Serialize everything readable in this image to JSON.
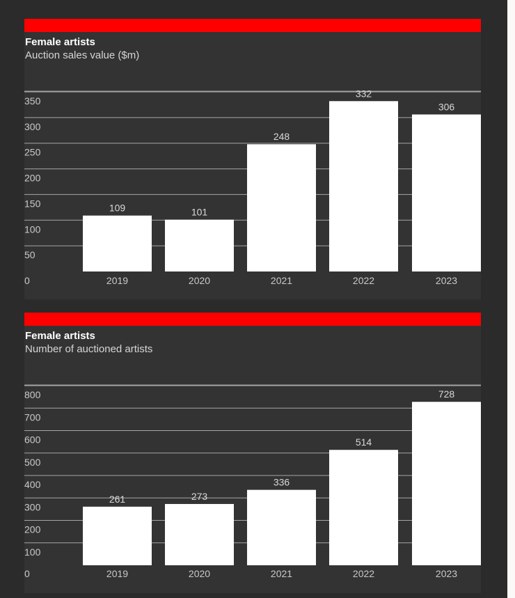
{
  "colors": {
    "accent": "#ff0000",
    "panel_background": "#333333",
    "bar_fill": "#ffffff"
  },
  "chart_data": [
    {
      "type": "bar",
      "title": "Female artists",
      "subtitle": "Auction sales value ($m)",
      "xlabel": "",
      "ylabel": "",
      "categories": [
        "2019",
        "2020",
        "2021",
        "2022",
        "2023"
      ],
      "values": [
        109,
        101,
        248,
        332,
        306
      ],
      "data_labels": [
        "109",
        "101",
        "248",
        "332",
        "306"
      ],
      "y_ticks": [
        "0",
        "50",
        "100",
        "150",
        "200",
        "250",
        "300",
        "350"
      ],
      "ylim": [
        0,
        350
      ],
      "grid": true,
      "legend": "none"
    },
    {
      "type": "bar",
      "title": "Female artists",
      "subtitle": "Number of auctioned artists",
      "xlabel": "",
      "ylabel": "",
      "categories": [
        "2019",
        "2020",
        "2021",
        "2022",
        "2023"
      ],
      "values": [
        261,
        273,
        336,
        514,
        728
      ],
      "data_labels": [
        "261",
        "273",
        "336",
        "514",
        "728"
      ],
      "y_ticks": [
        "0",
        "100",
        "200",
        "300",
        "400",
        "500",
        "600",
        "700",
        "800"
      ],
      "ylim": [
        0,
        800
      ],
      "grid": true,
      "legend": "none"
    }
  ]
}
